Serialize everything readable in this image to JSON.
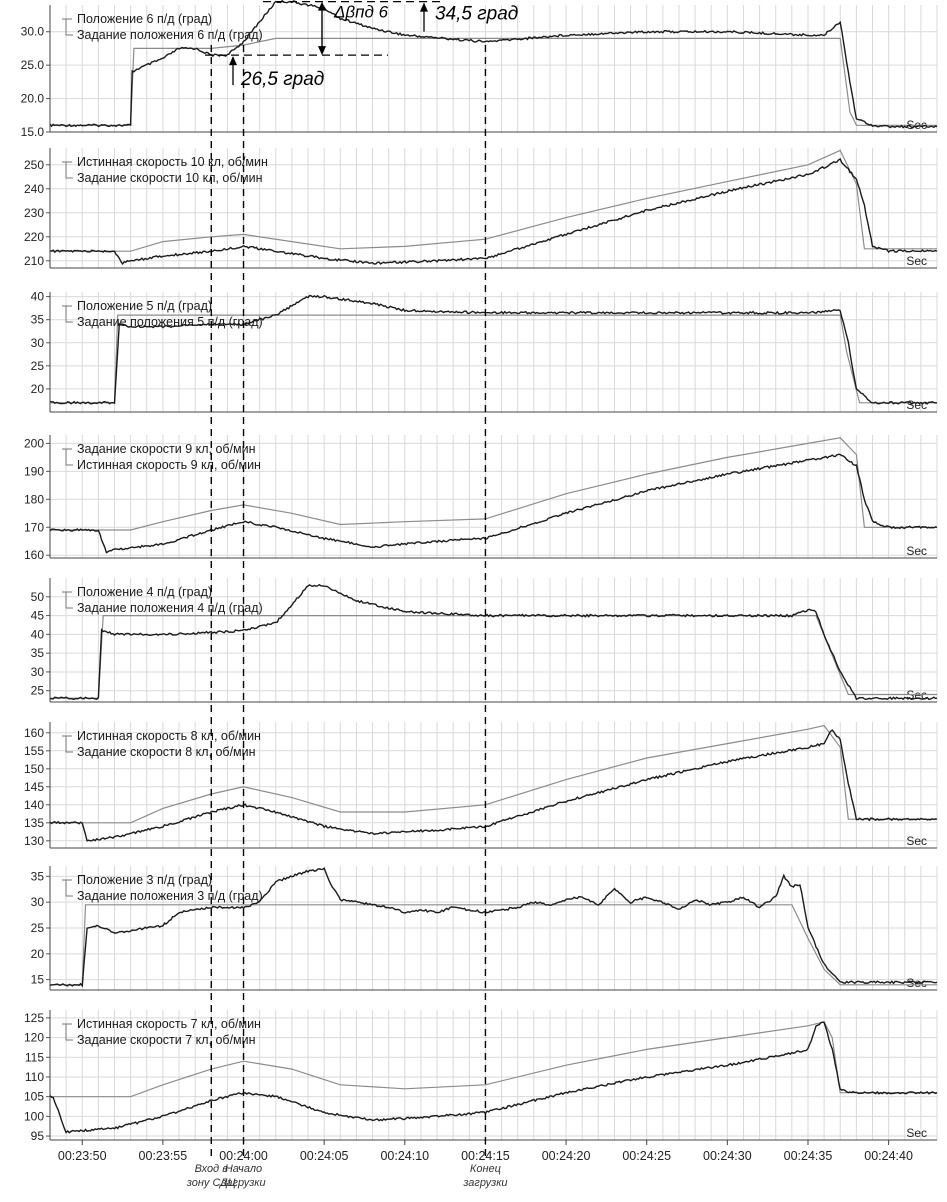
{
  "time_axis": {
    "range": [
      "00:23:48",
      "00:24:43"
    ],
    "ticks": [
      "00:23:50",
      "00:23:55",
      "00:24:00",
      "00:24:05",
      "00:24:10",
      "00:24:15",
      "00:24:20",
      "00:24:25",
      "00:24:30",
      "00:24:35",
      "00:24:40"
    ],
    "unit_label": "Sec"
  },
  "event_lines": [
    "00:23:58",
    "00:24:00",
    "00:24:15"
  ],
  "event_labels": [
    "Вход в зону СДЦ",
    "Начало загрузки",
    "Конец загрузки"
  ],
  "annotations": {
    "delta_label": "Δβпд 6",
    "upper_value": "34,5 град",
    "lower_value": "26,5 град",
    "upper_deg": 34.5,
    "lower_deg": 26.5
  },
  "colors": {
    "actual": "#1a1a1a",
    "setpoint": "#8c8c8c",
    "grid": "#d9d9d9"
  },
  "chart_data": [
    {
      "type": "line",
      "ylim": [
        15,
        34
      ],
      "yticks": [
        "30.0",
        "25.0",
        "20.0",
        "15.0"
      ],
      "grid": true,
      "legend": "top-left",
      "series": [
        {
          "name": "Положение 6 п/д (град)",
          "role": "actual",
          "x": [
            "00:23:48",
            "00:23:53",
            "00:23:53.1",
            "00:23:53.5",
            "00:23:55",
            "00:23:56",
            "00:23:57",
            "00:23:58",
            "00:23:59",
            "00:24:00",
            "00:24:01",
            "00:24:02",
            "00:24:03",
            "00:24:04",
            "00:24:05",
            "00:24:06",
            "00:24:08",
            "00:24:10",
            "00:24:15",
            "00:24:20",
            "00:24:25",
            "00:24:30",
            "00:24:35",
            "00:24:36",
            "00:24:37",
            "00:24:37.5",
            "00:24:38",
            "00:24:39",
            "00:24:40",
            "00:24:43"
          ],
          "values": [
            16,
            16,
            24,
            24.5,
            26,
            27.5,
            27.5,
            26.5,
            26.5,
            28.5,
            31.5,
            34.5,
            34.5,
            34,
            33.5,
            32,
            30.5,
            29.5,
            28.5,
            29.5,
            30,
            30,
            29.5,
            29.5,
            31.5,
            24,
            17,
            16,
            15.8,
            15.8
          ]
        },
        {
          "name": "Задание положения 6 п/д (град)",
          "role": "setpoint",
          "x": [
            "00:23:48",
            "00:23:53",
            "00:23:53.2",
            "00:23:54",
            "00:23:55",
            "00:23:58",
            "00:24:00",
            "00:24:02",
            "00:24:05",
            "00:24:10",
            "00:24:15",
            "00:24:20",
            "00:24:25",
            "00:24:30",
            "00:24:35",
            "00:24:37",
            "00:24:37.6",
            "00:24:38",
            "00:24:40",
            "00:24:43"
          ],
          "values": [
            16,
            16,
            27.5,
            27.5,
            27.5,
            27.5,
            28,
            29,
            29,
            29,
            29,
            29,
            29,
            29,
            29,
            29,
            18,
            16,
            16,
            16
          ]
        }
      ]
    },
    {
      "type": "line",
      "ylim": [
        207,
        257
      ],
      "yticks": [
        "250",
        "240",
        "230",
        "220",
        "210"
      ],
      "grid": true,
      "legend": "top-left",
      "series": [
        {
          "name": "Истинная скорость 10 кл, об/мин",
          "role": "actual",
          "x": [
            "00:23:48",
            "00:23:52",
            "00:23:52.5",
            "00:23:53",
            "00:23:55",
            "00:23:58",
            "00:24:00",
            "00:24:02",
            "00:24:05",
            "00:24:08",
            "00:24:12",
            "00:24:15",
            "00:24:20",
            "00:24:25",
            "00:24:30",
            "00:24:35",
            "00:24:37",
            "00:24:38",
            "00:24:38.5",
            "00:24:39",
            "00:24:40",
            "00:24:43"
          ],
          "values": [
            214,
            214,
            209,
            210,
            212,
            214,
            216,
            214,
            211,
            209,
            210,
            211,
            221,
            231,
            239,
            246,
            252,
            244,
            233,
            216,
            214,
            214
          ]
        },
        {
          "name": "Задание скорости 10 кл, об/мин",
          "role": "setpoint",
          "x": [
            "00:23:48",
            "00:23:53",
            "00:23:55",
            "00:23:58",
            "00:24:00",
            "00:24:03",
            "00:24:06",
            "00:24:10",
            "00:24:15",
            "00:24:20",
            "00:24:25",
            "00:24:30",
            "00:24:35",
            "00:24:37",
            "00:24:38",
            "00:24:38.5",
            "00:24:43"
          ],
          "values": [
            214,
            214,
            218,
            220,
            221,
            218,
            215,
            216,
            219,
            228,
            236,
            243,
            250,
            256,
            242,
            215,
            215
          ]
        }
      ]
    },
    {
      "type": "line",
      "ylim": [
        15,
        41
      ],
      "yticks": [
        "40",
        "35",
        "30",
        "25",
        "20"
      ],
      "grid": true,
      "legend": "top-left",
      "series": [
        {
          "name": "Положение 5 п/д (град)",
          "role": "actual",
          "x": [
            "00:23:48",
            "00:23:52",
            "00:23:52.3",
            "00:23:53",
            "00:23:55",
            "00:23:58",
            "00:24:00",
            "00:24:02",
            "00:24:03",
            "00:24:04",
            "00:24:05",
            "00:24:08",
            "00:24:10",
            "00:24:15",
            "00:24:20",
            "00:24:25",
            "00:24:30",
            "00:24:35",
            "00:24:37",
            "00:24:37.5",
            "00:24:38",
            "00:24:39",
            "00:24:43"
          ],
          "values": [
            17,
            17,
            34,
            33.5,
            33.5,
            34,
            34,
            36,
            38,
            40,
            40,
            38.5,
            37,
            36.5,
            36.5,
            36.5,
            36.5,
            36.5,
            37,
            30,
            20,
            17,
            17
          ]
        },
        {
          "name": "Задание положения 5 п/д (град)",
          "role": "setpoint",
          "x": [
            "00:23:48",
            "00:23:52",
            "00:23:52.2",
            "00:24:37",
            "00:24:37.4",
            "00:24:38.2",
            "00:24:43"
          ],
          "values": [
            17,
            17,
            36,
            36,
            28,
            17,
            17
          ]
        }
      ]
    },
    {
      "type": "line",
      "ylim": [
        159,
        203
      ],
      "yticks": [
        "200",
        "190",
        "180",
        "170",
        "160"
      ],
      "grid": true,
      "legend": "top-left",
      "series": [
        {
          "name": "Задание скорости 9 кл, об/мин",
          "role": "setpoint",
          "x": [
            "00:23:48",
            "00:23:53",
            "00:23:55",
            "00:23:58",
            "00:24:00",
            "00:24:03",
            "00:24:06",
            "00:24:10",
            "00:24:15",
            "00:24:20",
            "00:24:25",
            "00:24:30",
            "00:24:35",
            "00:24:37",
            "00:24:38",
            "00:24:38.5",
            "00:24:43"
          ],
          "values": [
            169,
            169,
            172,
            176,
            178,
            175,
            171,
            172,
            173,
            182,
            189,
            195,
            200,
            202,
            196,
            170,
            170
          ]
        },
        {
          "name": "Истинная скорость 9 кл, об/мин",
          "role": "actual",
          "x": [
            "00:23:48",
            "00:23:51",
            "00:23:51.5",
            "00:23:52",
            "00:23:55",
            "00:23:58",
            "00:24:00",
            "00:24:02",
            "00:24:05",
            "00:24:08",
            "00:24:12",
            "00:24:15",
            "00:24:20",
            "00:24:25",
            "00:24:30",
            "00:24:35",
            "00:24:37",
            "00:24:38",
            "00:24:38.5",
            "00:24:39",
            "00:24:40",
            "00:24:43"
          ],
          "values": [
            169,
            169,
            161,
            162,
            164,
            169,
            172,
            170,
            166,
            163,
            165,
            166,
            175,
            183,
            189,
            194,
            196,
            192,
            180,
            172,
            170,
            170
          ]
        }
      ]
    },
    {
      "type": "line",
      "ylim": [
        22,
        55
      ],
      "yticks": [
        "50",
        "45",
        "40",
        "35",
        "30",
        "25"
      ],
      "grid": true,
      "legend": "top-left",
      "series": [
        {
          "name": "Положение 4 п/д (град)",
          "role": "actual",
          "x": [
            "00:23:48",
            "00:23:51",
            "00:23:51.2",
            "00:23:52",
            "00:23:55",
            "00:23:58",
            "00:24:00",
            "00:24:02",
            "00:24:03",
            "00:24:04",
            "00:24:05",
            "00:24:07",
            "00:24:10",
            "00:24:15",
            "00:24:20",
            "00:24:25",
            "00:24:30",
            "00:24:34",
            "00:24:35",
            "00:24:35.5",
            "00:24:36",
            "00:24:37",
            "00:24:38",
            "00:24:43"
          ],
          "values": [
            23,
            23,
            41,
            40,
            40,
            40.5,
            41,
            43,
            48,
            53,
            53,
            49,
            46,
            45,
            45,
            45,
            45,
            45,
            46.5,
            46,
            40,
            30,
            23,
            23
          ]
        },
        {
          "name": "Задание положения 4 п/д (град)",
          "role": "setpoint",
          "x": [
            "00:23:48",
            "00:23:51",
            "00:23:51.3",
            "00:24:35.5",
            "00:24:37.5",
            "00:24:43"
          ],
          "values": [
            23,
            23,
            45,
            45,
            24,
            24
          ]
        }
      ]
    },
    {
      "type": "line",
      "ylim": [
        128,
        163
      ],
      "yticks": [
        "160",
        "155",
        "150",
        "145",
        "140",
        "135",
        "130"
      ],
      "grid": true,
      "legend": "top-left",
      "series": [
        {
          "name": "Истинная скорость 8 кл, об/мин",
          "role": "actual",
          "x": [
            "00:23:48",
            "00:23:50",
            "00:23:50.3",
            "00:23:52",
            "00:23:55",
            "00:23:58",
            "00:24:00",
            "00:24:02",
            "00:24:05",
            "00:24:08",
            "00:24:12",
            "00:24:15",
            "00:24:20",
            "00:24:25",
            "00:24:30",
            "00:24:35",
            "00:24:36",
            "00:24:36.5",
            "00:24:37",
            "00:24:37.5",
            "00:24:38",
            "00:24:43"
          ],
          "values": [
            135,
            135,
            130,
            131,
            134,
            138,
            140,
            138,
            134,
            132,
            133,
            134,
            141,
            147,
            152,
            156,
            157,
            161,
            158,
            146,
            136,
            136
          ]
        },
        {
          "name": "Задание скорости 8 кл, об/мин",
          "role": "setpoint",
          "x": [
            "00:23:48",
            "00:23:53",
            "00:23:55",
            "00:23:58",
            "00:24:00",
            "00:24:03",
            "00:24:06",
            "00:24:10",
            "00:24:15",
            "00:24:20",
            "00:24:25",
            "00:24:30",
            "00:24:35",
            "00:24:36",
            "00:24:37",
            "00:24:37.5",
            "00:24:43"
          ],
          "values": [
            135,
            135,
            139,
            143,
            145,
            142,
            138,
            138,
            140,
            147,
            153,
            157,
            161,
            162,
            156,
            136,
            136
          ]
        }
      ]
    },
    {
      "type": "line",
      "ylim": [
        13,
        37
      ],
      "yticks": [
        "35",
        "30",
        "25",
        "20",
        "15"
      ],
      "grid": true,
      "legend": "top-left",
      "series": [
        {
          "name": "Положение 3 п/д (град)",
          "role": "actual",
          "x": [
            "00:23:48",
            "00:23:50",
            "00:23:50.3",
            "00:23:51",
            "00:23:52",
            "00:23:53",
            "00:23:54",
            "00:23:55",
            "00:23:56",
            "00:23:57",
            "00:23:58",
            "00:23:59",
            "00:24:00",
            "00:24:01",
            "00:24:02",
            "00:24:03",
            "00:24:04",
            "00:24:05",
            "00:24:05.5",
            "00:24:06",
            "00:24:07",
            "00:24:08",
            "00:24:09",
            "00:24:10",
            "00:24:11",
            "00:24:12",
            "00:24:13",
            "00:24:14",
            "00:24:15",
            "00:24:16",
            "00:24:17",
            "00:24:18",
            "00:24:19",
            "00:24:20",
            "00:24:21",
            "00:24:22",
            "00:24:23",
            "00:24:24",
            "00:24:25",
            "00:24:26",
            "00:24:27",
            "00:24:28",
            "00:24:29",
            "00:24:30",
            "00:24:31",
            "00:24:32",
            "00:24:33",
            "00:24:33.5",
            "00:24:34",
            "00:24:34.5",
            "00:24:35",
            "00:24:36",
            "00:24:37",
            "00:24:43"
          ],
          "values": [
            14,
            14,
            25,
            25.5,
            24,
            24.5,
            25,
            25.5,
            28,
            28.5,
            29,
            29,
            29,
            30,
            34,
            35,
            36,
            36.5,
            33,
            30.5,
            30,
            29.5,
            29,
            28,
            28.5,
            28,
            29,
            28.5,
            28,
            28.5,
            29,
            30,
            29.5,
            30.5,
            31,
            29.5,
            32.5,
            30,
            31,
            30,
            28.5,
            30.5,
            29.5,
            30,
            31,
            29,
            31,
            35,
            33,
            33.5,
            25,
            18,
            14.5,
            14.5
          ]
        },
        {
          "name": "Задание положения 3 п/д (град)",
          "role": "setpoint",
          "x": [
            "00:23:48",
            "00:23:50",
            "00:23:50.2",
            "00:24:34",
            "00:24:35",
            "00:24:36",
            "00:24:37",
            "00:24:43"
          ],
          "values": [
            14,
            14,
            29.5,
            29.5,
            23,
            17,
            14,
            14
          ]
        }
      ]
    },
    {
      "type": "line",
      "ylim": [
        94,
        127
      ],
      "yticks": [
        "125",
        "120",
        "115",
        "110",
        "105",
        "100",
        "95"
      ],
      "grid": true,
      "legend": "top-left",
      "series": [
        {
          "name": "Истинная скорость 7 кл, об/мин",
          "role": "actual",
          "x": [
            "00:23:48",
            "00:23:48.2",
            "00:23:49",
            "00:23:52",
            "00:23:55",
            "00:23:58",
            "00:24:00",
            "00:24:02",
            "00:24:05",
            "00:24:08",
            "00:24:12",
            "00:24:15",
            "00:24:20",
            "00:24:25",
            "00:24:30",
            "00:24:34",
            "00:24:35",
            "00:24:35.5",
            "00:24:36",
            "00:24:36.5",
            "00:24:37",
            "00:24:37.5",
            "00:24:43"
          ],
          "values": [
            105,
            105,
            96,
            97,
            100,
            104,
            106,
            105,
            101,
            99,
            100,
            101,
            106,
            110,
            113,
            116,
            117,
            123,
            124,
            117,
            107,
            106,
            106
          ]
        },
        {
          "name": "Задание скорости 7 кл, об/мин",
          "role": "setpoint",
          "x": [
            "00:23:48",
            "00:23:53",
            "00:23:55",
            "00:23:58",
            "00:24:00",
            "00:24:03",
            "00:24:06",
            "00:24:10",
            "00:24:15",
            "00:24:20",
            "00:24:25",
            "00:24:30",
            "00:24:35",
            "00:24:36",
            "00:24:36.5",
            "00:24:37",
            "00:24:43"
          ],
          "values": [
            105,
            105,
            108,
            112,
            114,
            112,
            108,
            107,
            108,
            113,
            117,
            120,
            123,
            124,
            120,
            106,
            106
          ]
        }
      ]
    }
  ]
}
